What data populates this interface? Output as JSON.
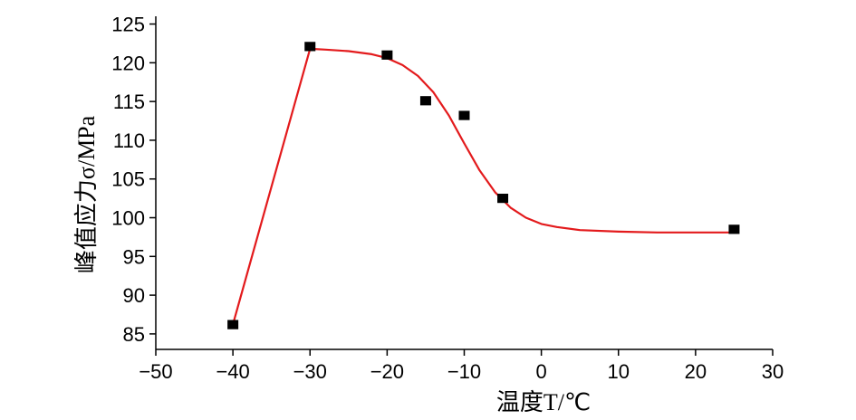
{
  "chart_data": {
    "type": "scatter",
    "xlabel": "温度T/℃",
    "ylabel": "峰值应力σ/MPa",
    "xlim": [
      -50,
      30
    ],
    "ylim": [
      83,
      126
    ],
    "x_ticks": [
      -50,
      -40,
      -30,
      -20,
      -10,
      0,
      10,
      20,
      30
    ],
    "x_tick_labels": [
      "−50",
      "−40",
      "−30",
      "−20",
      "−10",
      "0",
      "10",
      "20",
      "30"
    ],
    "y_ticks": [
      85,
      90,
      95,
      100,
      105,
      110,
      115,
      120,
      125
    ],
    "y_tick_labels": [
      "85",
      "90",
      "95",
      "100",
      "105",
      "110",
      "115",
      "120",
      "125"
    ],
    "grid": false,
    "series": [
      {
        "kind": "points",
        "marker": "square",
        "color": "#000000",
        "x": [
          -40,
          -30,
          -20,
          -15,
          -10,
          -5,
          25
        ],
        "y": [
          86.2,
          122.1,
          121.0,
          115.1,
          113.2,
          102.5,
          98.5
        ]
      },
      {
        "kind": "fit-line",
        "color": "#e31a1c",
        "x": [
          -40,
          -30,
          -28,
          -25,
          -22,
          -20,
          -18,
          -16,
          -14,
          -12,
          -10,
          -8,
          -6,
          -4,
          -2,
          0,
          2,
          5,
          10,
          15,
          20,
          25
        ],
        "y": [
          86.2,
          121.8,
          121.7,
          121.5,
          121.1,
          120.6,
          119.7,
          118.3,
          116.2,
          113.2,
          109.6,
          106.1,
          103.3,
          101.3,
          100.0,
          99.2,
          98.8,
          98.4,
          98.2,
          98.1,
          98.1,
          98.1
        ]
      }
    ]
  }
}
